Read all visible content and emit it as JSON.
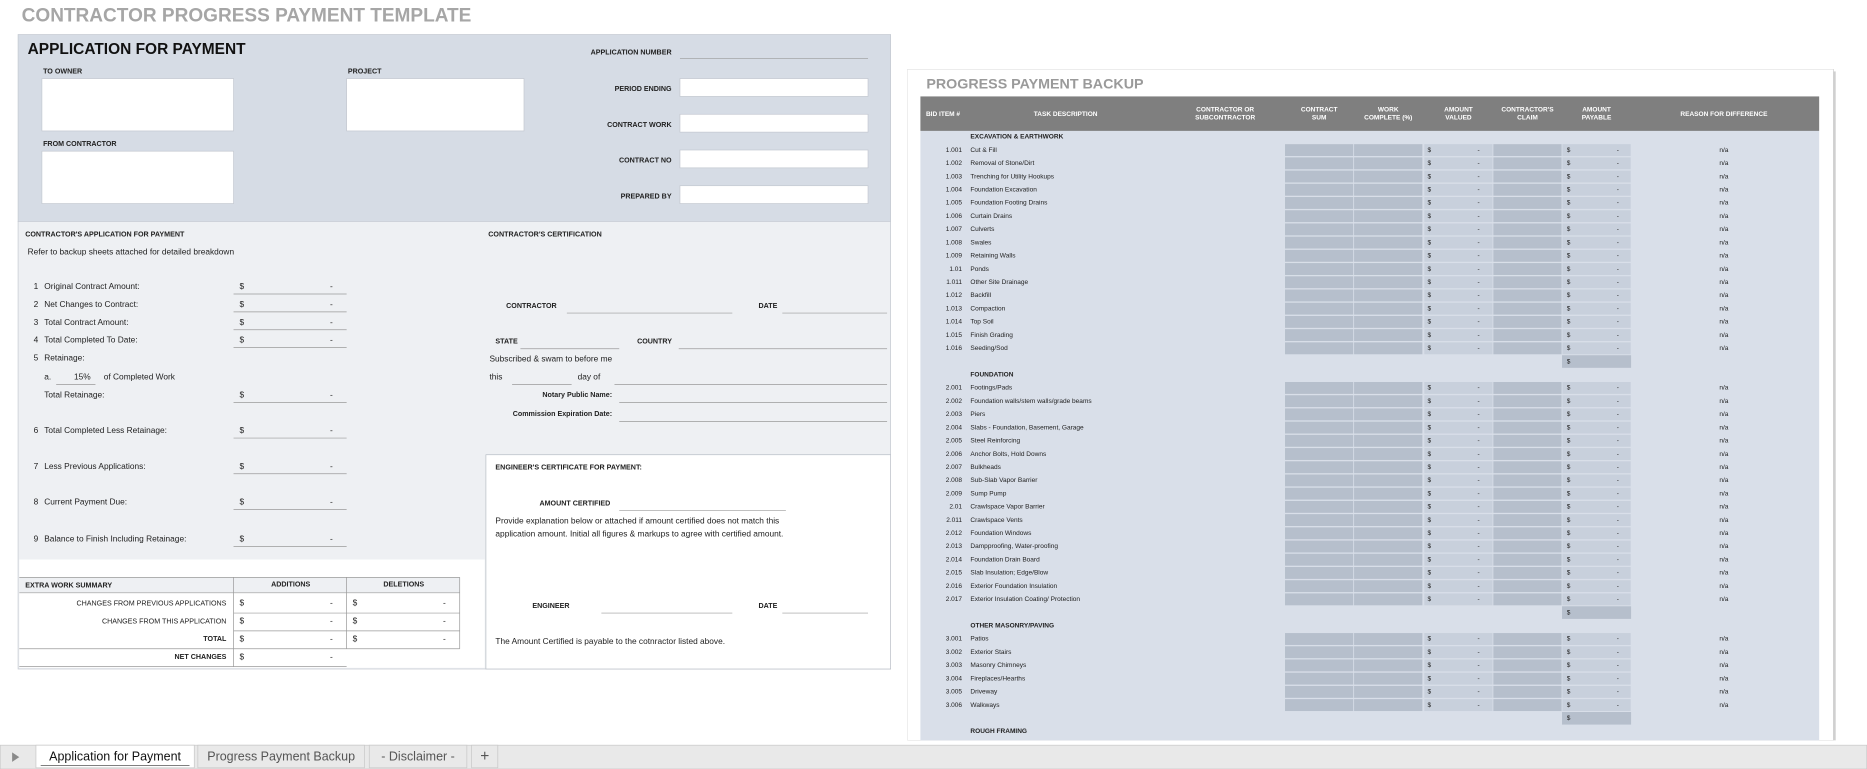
{
  "title": "CONTRACTOR PROGRESS PAYMENT TEMPLATE",
  "currency": "$",
  "empty": "-",
  "na": "n/a",
  "application": {
    "heading": "APPLICATION FOR PAYMENT",
    "to_owner": "TO OWNER",
    "project": "PROJECT",
    "from_contractor": "FROM CONTRACTOR",
    "fields": [
      "APPLICATION NUMBER",
      "PERIOD ENDING",
      "CONTRACT WORK",
      "CONTRACT NO",
      "PREPARED BY"
    ],
    "contractor_application": {
      "heading": "CONTRACTOR'S APPLICATION FOR PAYMENT",
      "note": "Refer to backup sheets attached for detailed breakdown",
      "lines": [
        {
          "number": "1",
          "label": "Original Contract Amount:"
        },
        {
          "number": "2",
          "label": "Net Changes to Contract:"
        },
        {
          "number": "3",
          "label": "Total Contract Amount:"
        },
        {
          "number": "4",
          "label": "Total Completed To Date:"
        },
        {
          "number": "5",
          "label": "Retainage:"
        },
        {
          "number": "6",
          "label": "Total Completed Less Retainage:"
        },
        {
          "number": "7",
          "label": "Less Previous Applications:"
        },
        {
          "number": "8",
          "label": "Current Payment Due:"
        },
        {
          "number": "9",
          "label": "Balance to Finish Including Retainage:"
        }
      ],
      "retainage": {
        "letter": "a.",
        "percent": "15%",
        "basis": "of Completed Work",
        "total": "Total Retainage:"
      }
    },
    "certification": {
      "heading": "CONTRACTOR'S CERTIFICATION",
      "contractor": "CONTRACTOR",
      "date": "DATE",
      "state": "STATE",
      "country": "COUNTRY",
      "sworn": "Subscribed & swam to before me",
      "this": "this",
      "day_of": "day of",
      "notary": "Notary Public Name:",
      "expiration": "Commission Expiration Date:"
    },
    "engineer": {
      "heading": "ENGINEER'S CERTIFICATE FOR PAYMENT:",
      "amount_certified": "AMOUNT CERTIFIED",
      "explanation": [
        "Provide explanation below or attached if amount certified does not match this",
        "application amount. Initial all figures & markups to agree with certified amount."
      ],
      "engineer": "ENGINEER",
      "date": "DATE",
      "payable": "The Amount Certified is payable to the cotnractor listed above."
    },
    "extra_work": {
      "heading": "EXTRA WORK SUMMARY",
      "columns": [
        "ADDITIONS",
        "DELETIONS"
      ],
      "rows": [
        "CHANGES FROM PREVIOUS APPLICATIONS",
        "CHANGES FROM THIS APPLICATION",
        "TOTAL",
        "NET CHANGES"
      ]
    }
  },
  "backup": {
    "title": "PROGRESS PAYMENT BACKUP",
    "headers": [
      [
        "BID ITEM #"
      ],
      [
        "TASK DESCRIPTION"
      ],
      [
        "CONTRACTOR OR",
        "SUBCONTRACTOR"
      ],
      [
        "CONTRACT",
        "SUM"
      ],
      [
        "WORK",
        "COMPLETE (%)"
      ],
      [
        "AMOUNT",
        "VALUED"
      ],
      [
        "CONTRACTOR'S",
        "CLAIM"
      ],
      [
        "AMOUNT",
        "PAYABLE"
      ],
      [
        "REASON FOR DIFFERENCE"
      ]
    ],
    "sections": [
      {
        "title": "EXCAVATION & EARTHWORK",
        "items": [
          {
            "id": "1.001",
            "task": "Cut & Fill"
          },
          {
            "id": "1.002",
            "task": "Removal of Stone/Dirt"
          },
          {
            "id": "1.003",
            "task": "Trenching for Utility Hookups"
          },
          {
            "id": "1.004",
            "task": "Foundation Excavation"
          },
          {
            "id": "1.005",
            "task": "Foundation Footing Drains"
          },
          {
            "id": "1.006",
            "task": "Curtain Drains"
          },
          {
            "id": "1.007",
            "task": "Culverts"
          },
          {
            "id": "1.008",
            "task": "Swales"
          },
          {
            "id": "1.009",
            "task": "Retaining Walls"
          },
          {
            "id": "1.01",
            "task": "Ponds"
          },
          {
            "id": "1.011",
            "task": "Other Site Drainage"
          },
          {
            "id": "1.012",
            "task": "Backfill"
          },
          {
            "id": "1.013",
            "task": "Compaction"
          },
          {
            "id": "1.014",
            "task": "Top Soil"
          },
          {
            "id": "1.015",
            "task": "Finish Grading"
          },
          {
            "id": "1.016",
            "task": "Seeding/Sod"
          }
        ]
      },
      {
        "title": "FOUNDATION",
        "items": [
          {
            "id": "2.001",
            "task": "Footings/Pads"
          },
          {
            "id": "2.002",
            "task": "Foundation walls/stem walls/grade beams"
          },
          {
            "id": "2.003",
            "task": "Piers"
          },
          {
            "id": "2.004",
            "task": "Slabs - Foundation, Basement, Garage"
          },
          {
            "id": "2.005",
            "task": "Steel Reinforcing"
          },
          {
            "id": "2.006",
            "task": "Anchor Bolts, Hold Downs"
          },
          {
            "id": "2.007",
            "task": "Bulkheads"
          },
          {
            "id": "2.008",
            "task": "Sub-Slab Vapor Barrier"
          },
          {
            "id": "2.009",
            "task": "Sump Pump"
          },
          {
            "id": "2.01",
            "task": "Crawlspace Vapor Barrier"
          },
          {
            "id": "2.011",
            "task": "Crawlspace Vents"
          },
          {
            "id": "2.012",
            "task": "Foundation Windows"
          },
          {
            "id": "2.013",
            "task": "Dampproofing, Water-proofing"
          },
          {
            "id": "2.014",
            "task": "Foundation Drain Board"
          },
          {
            "id": "2.015",
            "task": "Slab Insulation; Edge/Blow"
          },
          {
            "id": "2.016",
            "task": "Exterior Foundation Insulation"
          },
          {
            "id": "2.017",
            "task": "Exterior Insulation Coating/ Protection"
          }
        ]
      },
      {
        "title": "OTHER MASONRY/PAVING",
        "items": [
          {
            "id": "3.001",
            "task": "Patios"
          },
          {
            "id": "3.002",
            "task": "Exterior Stairs"
          },
          {
            "id": "3.003",
            "task": "Masonry Chimneys"
          },
          {
            "id": "3.004",
            "task": "Fireplaces/Hearths"
          },
          {
            "id": "3.005",
            "task": "Driveway"
          },
          {
            "id": "3.006",
            "task": "Walkways"
          }
        ]
      },
      {
        "title": "ROUGH FRAMING",
        "items": []
      }
    ]
  },
  "tabs": [
    "Application for Payment",
    "Progress Payment Backup",
    "- Disclaimer -",
    "+"
  ]
}
